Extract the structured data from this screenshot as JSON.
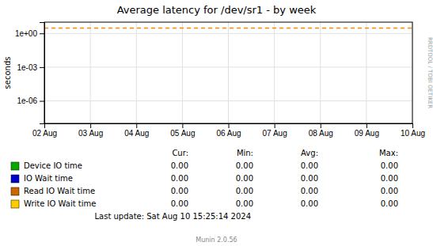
{
  "chart_data": {
    "type": "line",
    "title": "Average latency for /dev/sr1 - by week",
    "ylabel": "seconds",
    "categories": [
      "02 Aug",
      "03 Aug",
      "04 Aug",
      "05 Aug",
      "06 Aug",
      "07 Aug",
      "08 Aug",
      "09 Aug",
      "10 Aug"
    ],
    "log": "y",
    "ylim": [
      1e-08,
      10
    ],
    "yticks": [
      {
        "value": 1e-06,
        "label": "1e-06"
      },
      {
        "value": 0.001,
        "label": "1e-03"
      },
      {
        "value": 1,
        "label": "1e+00"
      }
    ],
    "grid": true,
    "hlines": [
      {
        "value": 3.0,
        "color": "#ff8800",
        "line_style": "dashed"
      }
    ],
    "table": {
      "headers": [
        "Cur:",
        "Min:",
        "Avg:",
        "Max:"
      ],
      "rows": [
        {
          "name": "Device IO time",
          "color": "#00aa00",
          "values": [
            0,
            0,
            0,
            0
          ],
          "value_labels": [
            "0.00",
            "0.00",
            "0.00",
            "0.00"
          ]
        },
        {
          "name": "IO Wait time",
          "color": "#0000cc",
          "values": [
            0,
            0,
            0,
            0
          ],
          "value_labels": [
            "0.00",
            "0.00",
            "0.00",
            "0.00"
          ]
        },
        {
          "name": "Read IO Wait time",
          "color": "#cc6600",
          "values": [
            0,
            0,
            0,
            0
          ],
          "value_labels": [
            "0.00",
            "0.00",
            "0.00",
            "0.00"
          ]
        },
        {
          "name": "Write IO Wait time",
          "color": "#ffcc00",
          "values": [
            0,
            0,
            0,
            0
          ],
          "value_labels": [
            "0.00",
            "0.00",
            "0.00",
            "0.00"
          ]
        }
      ]
    },
    "last_update": "Last update: Sat Aug 10 15:25:14 2024",
    "footer": "Munin 2.0.56",
    "watermark": "RRDTOOL / TOBI OETIKER"
  }
}
